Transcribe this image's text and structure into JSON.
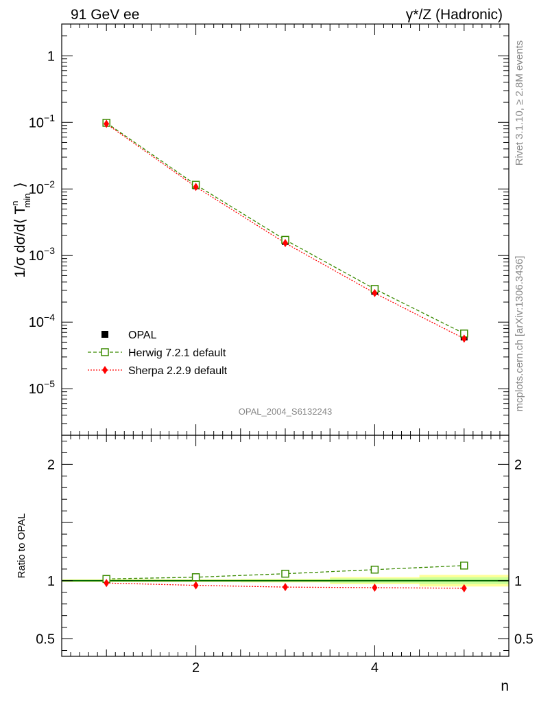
{
  "header": {
    "left_title": "91 GeV ee",
    "right_title": "γ*/Z (Hadronic)"
  },
  "side_labels": {
    "rivet": "Rivet 3.1.10, ≥ 2.8M events",
    "mcplots": "mcplots.cern.ch [arXiv:1306.3436]"
  },
  "watermark": "OPAL_2004_S6132243",
  "colors": {
    "opal": "#000000",
    "herwig": "#3a8a00",
    "sherpa": "#ff0000",
    "band_inner": "#ccff99",
    "band_outer": "#ffff99",
    "ratio_line": "#006600"
  },
  "chart_data": [
    {
      "type": "scatter",
      "title": "",
      "ylabel_parts": {
        "main": "1/σ dσ/d⟨ T",
        "sup": "n",
        "sub": "min",
        "close": "⟩"
      },
      "y_scale": "log",
      "ylim": [
        2e-06,
        3
      ],
      "xlim": [
        0.5,
        5.5
      ],
      "y_tick_labels": [
        {
          "value": 1,
          "base": "1",
          "exp": ""
        },
        {
          "value": 0.1,
          "base": "10",
          "exp": "−1"
        },
        {
          "value": 0.01,
          "base": "10",
          "exp": "−2"
        },
        {
          "value": 0.001,
          "base": "10",
          "exp": "−3"
        },
        {
          "value": 0.0001,
          "base": "10",
          "exp": "−4"
        },
        {
          "value": 1e-05,
          "base": "10",
          "exp": "−5"
        }
      ],
      "x": [
        1,
        2,
        3,
        4,
        5
      ],
      "series": [
        {
          "name": "OPAL",
          "values": [
            0.097,
            0.0112,
            0.00163,
            0.00029,
            6e-05
          ]
        },
        {
          "name": "Herwig 7.2.1 default",
          "values": [
            0.0985,
            0.01155,
            0.00172,
            0.000315,
            6.75e-05
          ]
        },
        {
          "name": "Sherpa 2.2.9 default",
          "values": [
            0.095,
            0.01075,
            0.00154,
            0.000273,
            5.65e-05
          ]
        }
      ],
      "legend_position": "bottom-left"
    },
    {
      "type": "line",
      "ylabel": "Ratio to OPAL",
      "xlabel": "n",
      "xlim": [
        0.5,
        5.5
      ],
      "ylim": [
        0.35,
        2.25
      ],
      "x_tick_labels": [
        {
          "value": 2,
          "label": "2"
        },
        {
          "value": 4,
          "label": "4"
        }
      ],
      "y_tick_labels": [
        {
          "value": 2,
          "label": "2"
        },
        {
          "value": 1,
          "label": "1"
        },
        {
          "value": 0.5,
          "label": "0.5"
        }
      ],
      "x": [
        1,
        2,
        3,
        4,
        5
      ],
      "series": [
        {
          "name": "Herwig 7.2.1 default",
          "values": [
            1.015,
            1.03,
            1.06,
            1.095,
            1.13
          ]
        },
        {
          "name": "Sherpa 2.2.9 default",
          "values": [
            0.98,
            0.96,
            0.945,
            0.94,
            0.935
          ]
        }
      ],
      "uncertainty_band": [
        {
          "x": [
            0.5,
            1.5
          ],
          "inner": 0.008,
          "outer": 0.012
        },
        {
          "x": [
            1.5,
            2.5
          ],
          "inner": 0.008,
          "outer": 0.012
        },
        {
          "x": [
            2.5,
            3.5
          ],
          "inner": 0.01,
          "outer": 0.015
        },
        {
          "x": [
            3.5,
            4.5
          ],
          "inner": 0.02,
          "outer": 0.03
        },
        {
          "x": [
            4.5,
            5.5
          ],
          "inner": 0.03,
          "outer": 0.05
        }
      ]
    }
  ]
}
